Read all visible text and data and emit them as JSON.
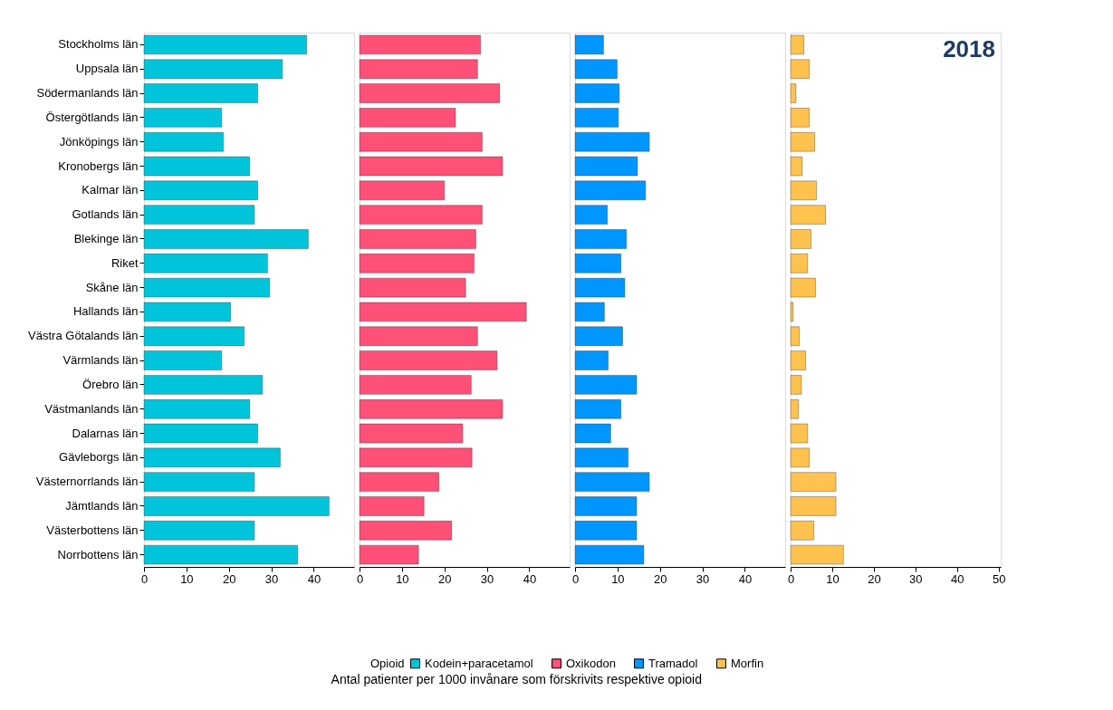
{
  "chart_data": [
    {
      "type": "bar",
      "orientation": "horizontal",
      "xlabel": "Antal patienter per 1000 invånare som förskrivits respektive opioid",
      "legend_title": "Opioid",
      "legend": "bottom",
      "grid": false,
      "categories": [
        "Stockholms län",
        "Uppsala län",
        "Södermanlands län",
        "Östergötlands län",
        "Jönköpings län",
        "Kronobergs län",
        "Kalmar län",
        "Gotlands län",
        "Blekinge län",
        "Riket",
        "Skåne län",
        "Hallands län",
        "Västra Götalands län",
        "Värmlands län",
        "Örebro län",
        "Västmanlands län",
        "Dalarnas län",
        "Gävleborgs län",
        "Västernorrlands län",
        "Jämtlands län",
        "Västerbottens län",
        "Norrbottens län"
      ],
      "xlim": [
        0,
        49.5
      ],
      "xticks": [
        0,
        10,
        20,
        30,
        40
      ],
      "series": [
        {
          "name": "Kodein+paracetamol",
          "color": "#00c5da",
          "values": [
            38.3,
            32.6,
            26.8,
            18.3,
            18.7,
            24.9,
            26.8,
            26,
            38.7,
            29.1,
            29.6,
            20.4,
            23.6,
            18.3,
            27.9,
            24.9,
            26.8,
            32.1,
            26,
            43.6,
            26,
            36.2
          ]
        }
      ]
    },
    {
      "type": "bar",
      "orientation": "horizontal",
      "tick_labels": "x",
      "xlim": [
        0,
        49.5
      ],
      "xticks": [
        0,
        10,
        20,
        30,
        40
      ],
      "series": [
        {
          "name": "Oxikodon",
          "color": "#ff5078",
          "values": [
            28.5,
            27.8,
            33,
            22.6,
            28.9,
            33.7,
            20,
            28.9,
            27.4,
            27,
            25,
            39.3,
            27.8,
            32.4,
            26.3,
            33.7,
            24.3,
            26.5,
            18.7,
            15.2,
            21.7,
            13.9
          ]
        }
      ]
    },
    {
      "type": "bar",
      "orientation": "horizontal",
      "tick_labels": "x",
      "xlim": [
        0,
        49.5
      ],
      "xticks": [
        0,
        10,
        20,
        30,
        40
      ],
      "series": [
        {
          "name": "Tramadol",
          "color": "#0096ff",
          "values": [
            6.7,
            9.9,
            10.4,
            10.2,
            17.5,
            14.7,
            16.6,
            7.6,
            12.1,
            10.8,
            11.7,
            6.9,
            11.2,
            7.8,
            14.5,
            10.8,
            8.4,
            12.5,
            17.5,
            14.5,
            14.5,
            16.2
          ]
        }
      ]
    },
    {
      "type": "bar",
      "orientation": "horizontal",
      "tick_labels": "x",
      "annotations": [
        "2018"
      ],
      "xlim": [
        0,
        50.5
      ],
      "xticks": [
        0,
        10,
        20,
        30,
        40,
        50
      ],
      "series": [
        {
          "name": "Morfin",
          "color": "#ffc24e",
          "values": [
            3.2,
            4.5,
            1.3,
            4.5,
            5.8,
            2.8,
            6.2,
            8.4,
            4.9,
            4.1,
            6,
            0.6,
            2.1,
            3.6,
            2.6,
            1.9,
            4.1,
            4.5,
            10.9,
            10.9,
            5.6,
            12.7
          ]
        }
      ]
    }
  ]
}
